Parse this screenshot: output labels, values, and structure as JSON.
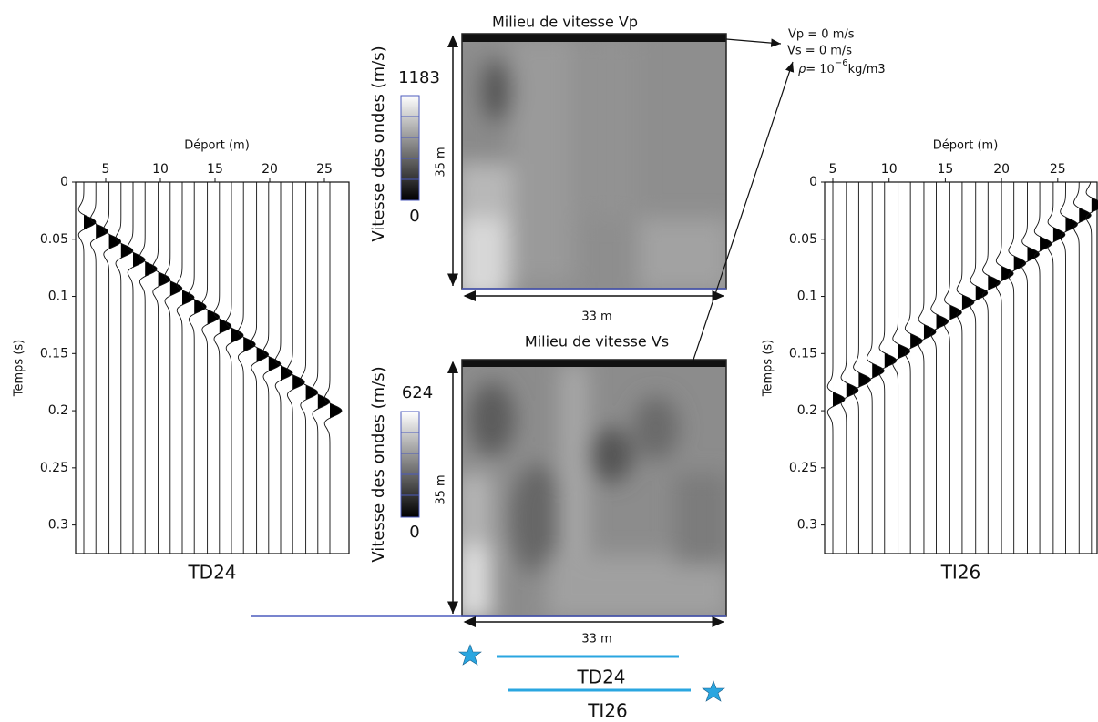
{
  "panels": [
    {
      "title": "TD24",
      "x_label": "Déport (m)",
      "y_label": "Temps (s)",
      "xlim": [
        2.25,
        27.25
      ],
      "ylim": [
        0,
        0.325
      ],
      "xticks": [
        5,
        10,
        15,
        20,
        25
      ],
      "yticks": [
        0,
        0.05,
        0.1,
        0.15,
        0.2,
        0.25,
        0.3
      ],
      "traces": {
        "offsets": [
          3,
          4.1,
          5.3,
          6.4,
          7.5,
          8.6,
          9.8,
          10.9,
          12,
          13.1,
          14.3,
          15.4,
          16.5,
          17.6,
          18.8,
          19.9,
          21,
          22.1,
          23.3,
          24.4,
          25.5
        ],
        "arrivals": [
          0.035,
          0.043,
          0.052,
          0.06,
          0.068,
          0.076,
          0.085,
          0.093,
          0.101,
          0.109,
          0.118,
          0.126,
          0.134,
          0.142,
          0.151,
          0.159,
          0.167,
          0.175,
          0.184,
          0.192,
          0.2
        ]
      }
    },
    {
      "title": "TI26",
      "x_label": "Déport (m)",
      "y_label": "Temps (s)",
      "xlim": [
        4.27,
        28.5
      ],
      "ylim": [
        0,
        0.325
      ],
      "xticks": [
        5,
        10,
        15,
        20,
        25
      ],
      "yticks": [
        0,
        0.05,
        0.1,
        0.15,
        0.2,
        0.25,
        0.3
      ],
      "traces": {
        "offsets": [
          5,
          6.2,
          7.3,
          8.5,
          9.6,
          10.8,
          11.9,
          13.1,
          14.2,
          15.4,
          16.5,
          17.7,
          18.8,
          20,
          21.1,
          22.3,
          23.4,
          24.6,
          25.7,
          26.9,
          28
        ],
        "arrivals": [
          0.19,
          0.182,
          0.173,
          0.165,
          0.156,
          0.148,
          0.139,
          0.131,
          0.122,
          0.114,
          0.105,
          0.097,
          0.088,
          0.08,
          0.071,
          0.063,
          0.054,
          0.046,
          0.037,
          0.029,
          0.02
        ]
      }
    }
  ],
  "velocity_models": [
    {
      "title": "Milieu de vitesse Vp",
      "colorbar_label": "Vitesse des ondes (m/s)",
      "colorbar_max": 1183,
      "colorbar_min": 0,
      "depth_label": "35 m",
      "width_label": "33 m"
    },
    {
      "title": "Milieu de vitesse Vs",
      "colorbar_label": "Vitesse des ondes (m/s)",
      "colorbar_max": 624,
      "colorbar_min": 0,
      "depth_label": "35 m",
      "width_label": "33 m"
    }
  ],
  "surface_conditions": {
    "vp": "Vp = 0 m/s",
    "vs": "Vs = 0 m/s",
    "rho_prefix": "ρ= ",
    "rho_base": "10",
    "rho_exponent": "−6",
    "rho_unit": "kg/m3"
  },
  "acquisition_legend": {
    "direct": "TD24",
    "inverse": "TI26"
  }
}
